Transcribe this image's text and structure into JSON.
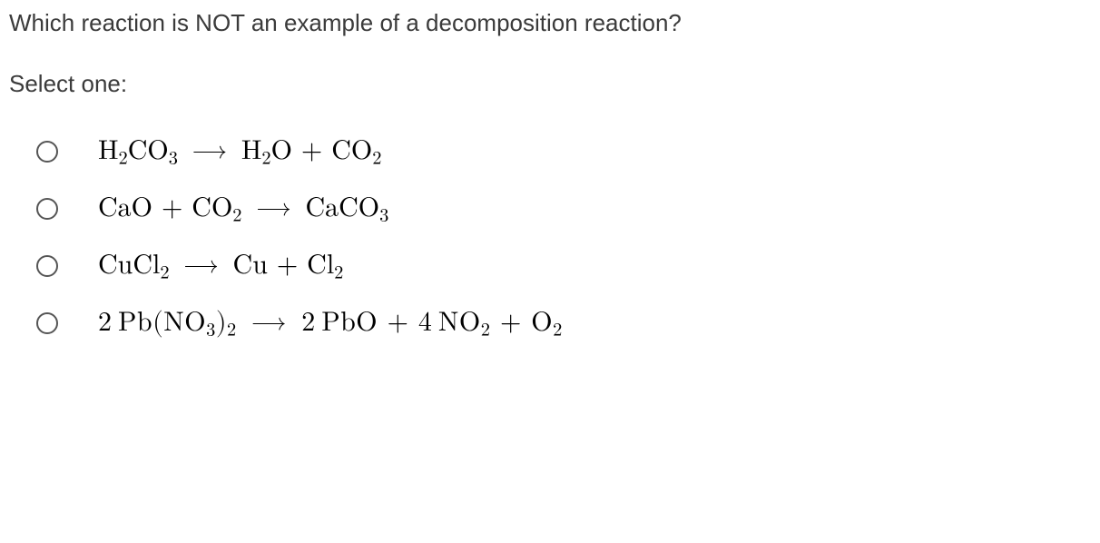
{
  "question": {
    "prompt": "Which reaction is NOT an example of a decomposition reaction?",
    "select_label": "Select one:"
  },
  "options": [
    {
      "reactants": [
        {
          "coef": "",
          "formula": "H2CO3"
        }
      ],
      "products": [
        {
          "coef": "",
          "formula": "H2O"
        },
        {
          "coef": "",
          "formula": "CO2"
        }
      ]
    },
    {
      "reactants": [
        {
          "coef": "",
          "formula": "CaO"
        },
        {
          "coef": "",
          "formula": "CO2"
        }
      ],
      "products": [
        {
          "coef": "",
          "formula": "CaCO3"
        }
      ]
    },
    {
      "reactants": [
        {
          "coef": "",
          "formula": "CuCl2"
        }
      ],
      "products": [
        {
          "coef": "",
          "formula": "Cu"
        },
        {
          "coef": "",
          "formula": "Cl2"
        }
      ]
    },
    {
      "reactants": [
        {
          "coef": "2",
          "formula": "Pb(NO3)2"
        }
      ],
      "products": [
        {
          "coef": "2",
          "formula": "PbO"
        },
        {
          "coef": "4",
          "formula": "NO2"
        },
        {
          "coef": "",
          "formula": "O2"
        }
      ]
    }
  ],
  "style": {
    "arrow_glyph": "⟶",
    "plus_glyph": " + ",
    "question_color": "#3b3b3b",
    "formula_color": "#000000",
    "radio_border": "#555555",
    "background": "#ffffff",
    "question_fontsize": 26,
    "formula_fontsize": 30
  }
}
